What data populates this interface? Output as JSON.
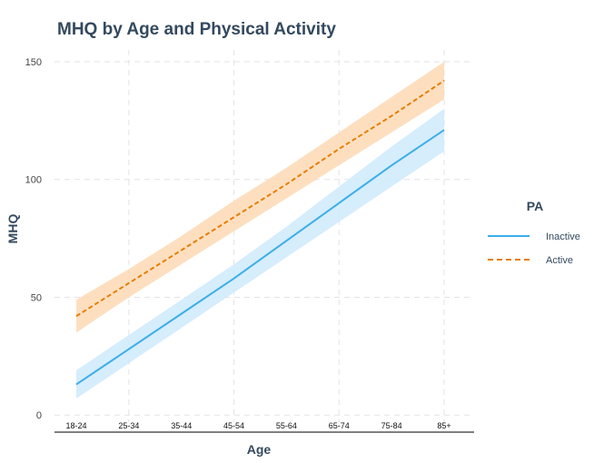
{
  "chart_data": {
    "type": "line",
    "title": "MHQ by Age and Physical Activity",
    "xlabel": "Age",
    "ylabel": "MHQ",
    "categories": [
      "18-24",
      "25-34",
      "35-44",
      "45-54",
      "55-64",
      "65-74",
      "75-84",
      "85+"
    ],
    "ylim": [
      -3,
      155
    ],
    "yticks": [
      0,
      50,
      100,
      150
    ],
    "grid": true,
    "legend": {
      "title": "PA",
      "position": "right"
    },
    "series": [
      {
        "name": "Inactive",
        "color": "#3daee9",
        "band_color": "#cfeafb",
        "line_style": "solid",
        "values": [
          13,
          28,
          43,
          58,
          74,
          90,
          106,
          121
        ],
        "lower": [
          7,
          22,
          37,
          52,
          67,
          82,
          97,
          112
        ],
        "upper": [
          19,
          34,
          49,
          64,
          80,
          97,
          114,
          130
        ]
      },
      {
        "name": "Active",
        "color": "#e67e00",
        "band_color": "#fdd9b5",
        "line_style": "dashed",
        "values": [
          42,
          56,
          70,
          84,
          98,
          113,
          127,
          142
        ],
        "lower": [
          35,
          50,
          64,
          78,
          92,
          106,
          120,
          134
        ],
        "upper": [
          49,
          62,
          76,
          91,
          105,
          120,
          135,
          150
        ]
      }
    ]
  }
}
